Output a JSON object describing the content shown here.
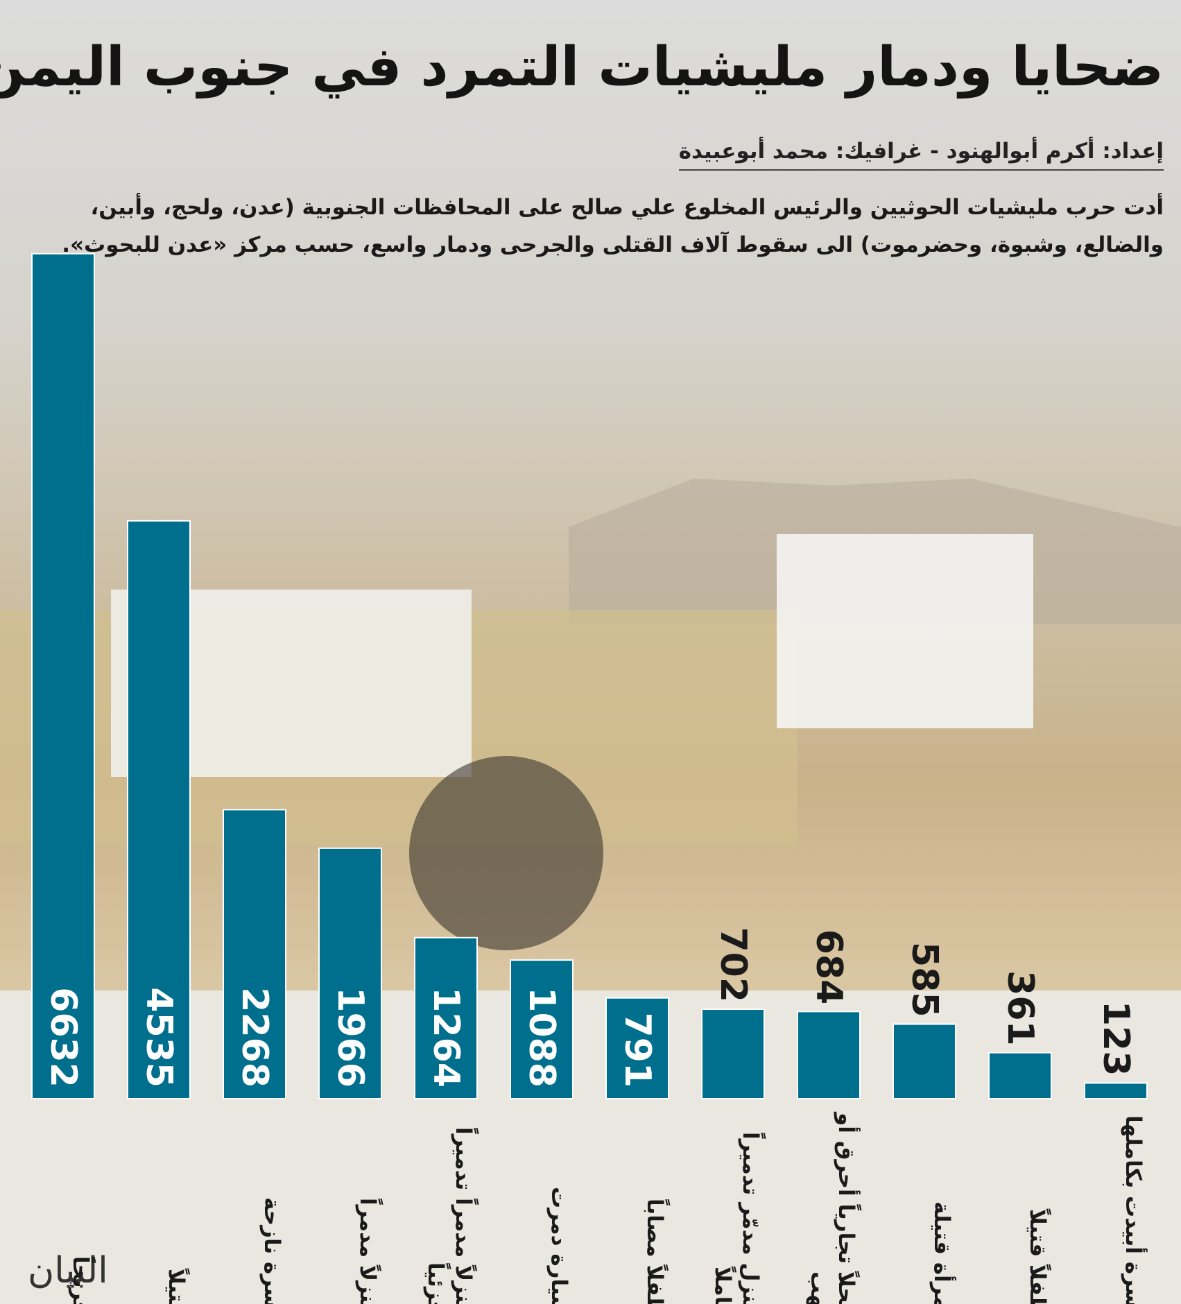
{
  "title": "ضحايا ودمار مليشيات التمرد في جنوب اليمن",
  "credit": "إعداد: أكرم أبوالهنود - غرافيك: محمد أبوعبيدة",
  "description": "أدت حرب مليشيات الحوثيين والرئيس المخلوع علي صالح على المحافظات الجنوبية (عدن، ولحج، وأبين، والضالع، وشبوة، وحضرموت) الى سقوط آلاف القتلى والجرحى ودمار واسع، حسب مركز «عدن للبحوث».",
  "logo": "البيان",
  "chart_data": {
    "type": "bar",
    "color": "#006f8e",
    "categories": [
      "جريحاً",
      "قتيلاً",
      "أسرة نازحة",
      "منزلاً مدمراً",
      "منزلاً مدمراً تدميراً جزئياً",
      "سيارة دمرت",
      "طفلاً مصاباً",
      "منزل مدمّر تدميراً كاملاً",
      "محلاً تجارياً أحرق أو نهب",
      "امرأة قتيلة",
      "طفلاً قتيلاً",
      "أسرة أبيدت بكاملها"
    ],
    "values": [
      6632,
      4535,
      2268,
      1966,
      1264,
      1088,
      791,
      702,
      684,
      585,
      361,
      123
    ]
  }
}
